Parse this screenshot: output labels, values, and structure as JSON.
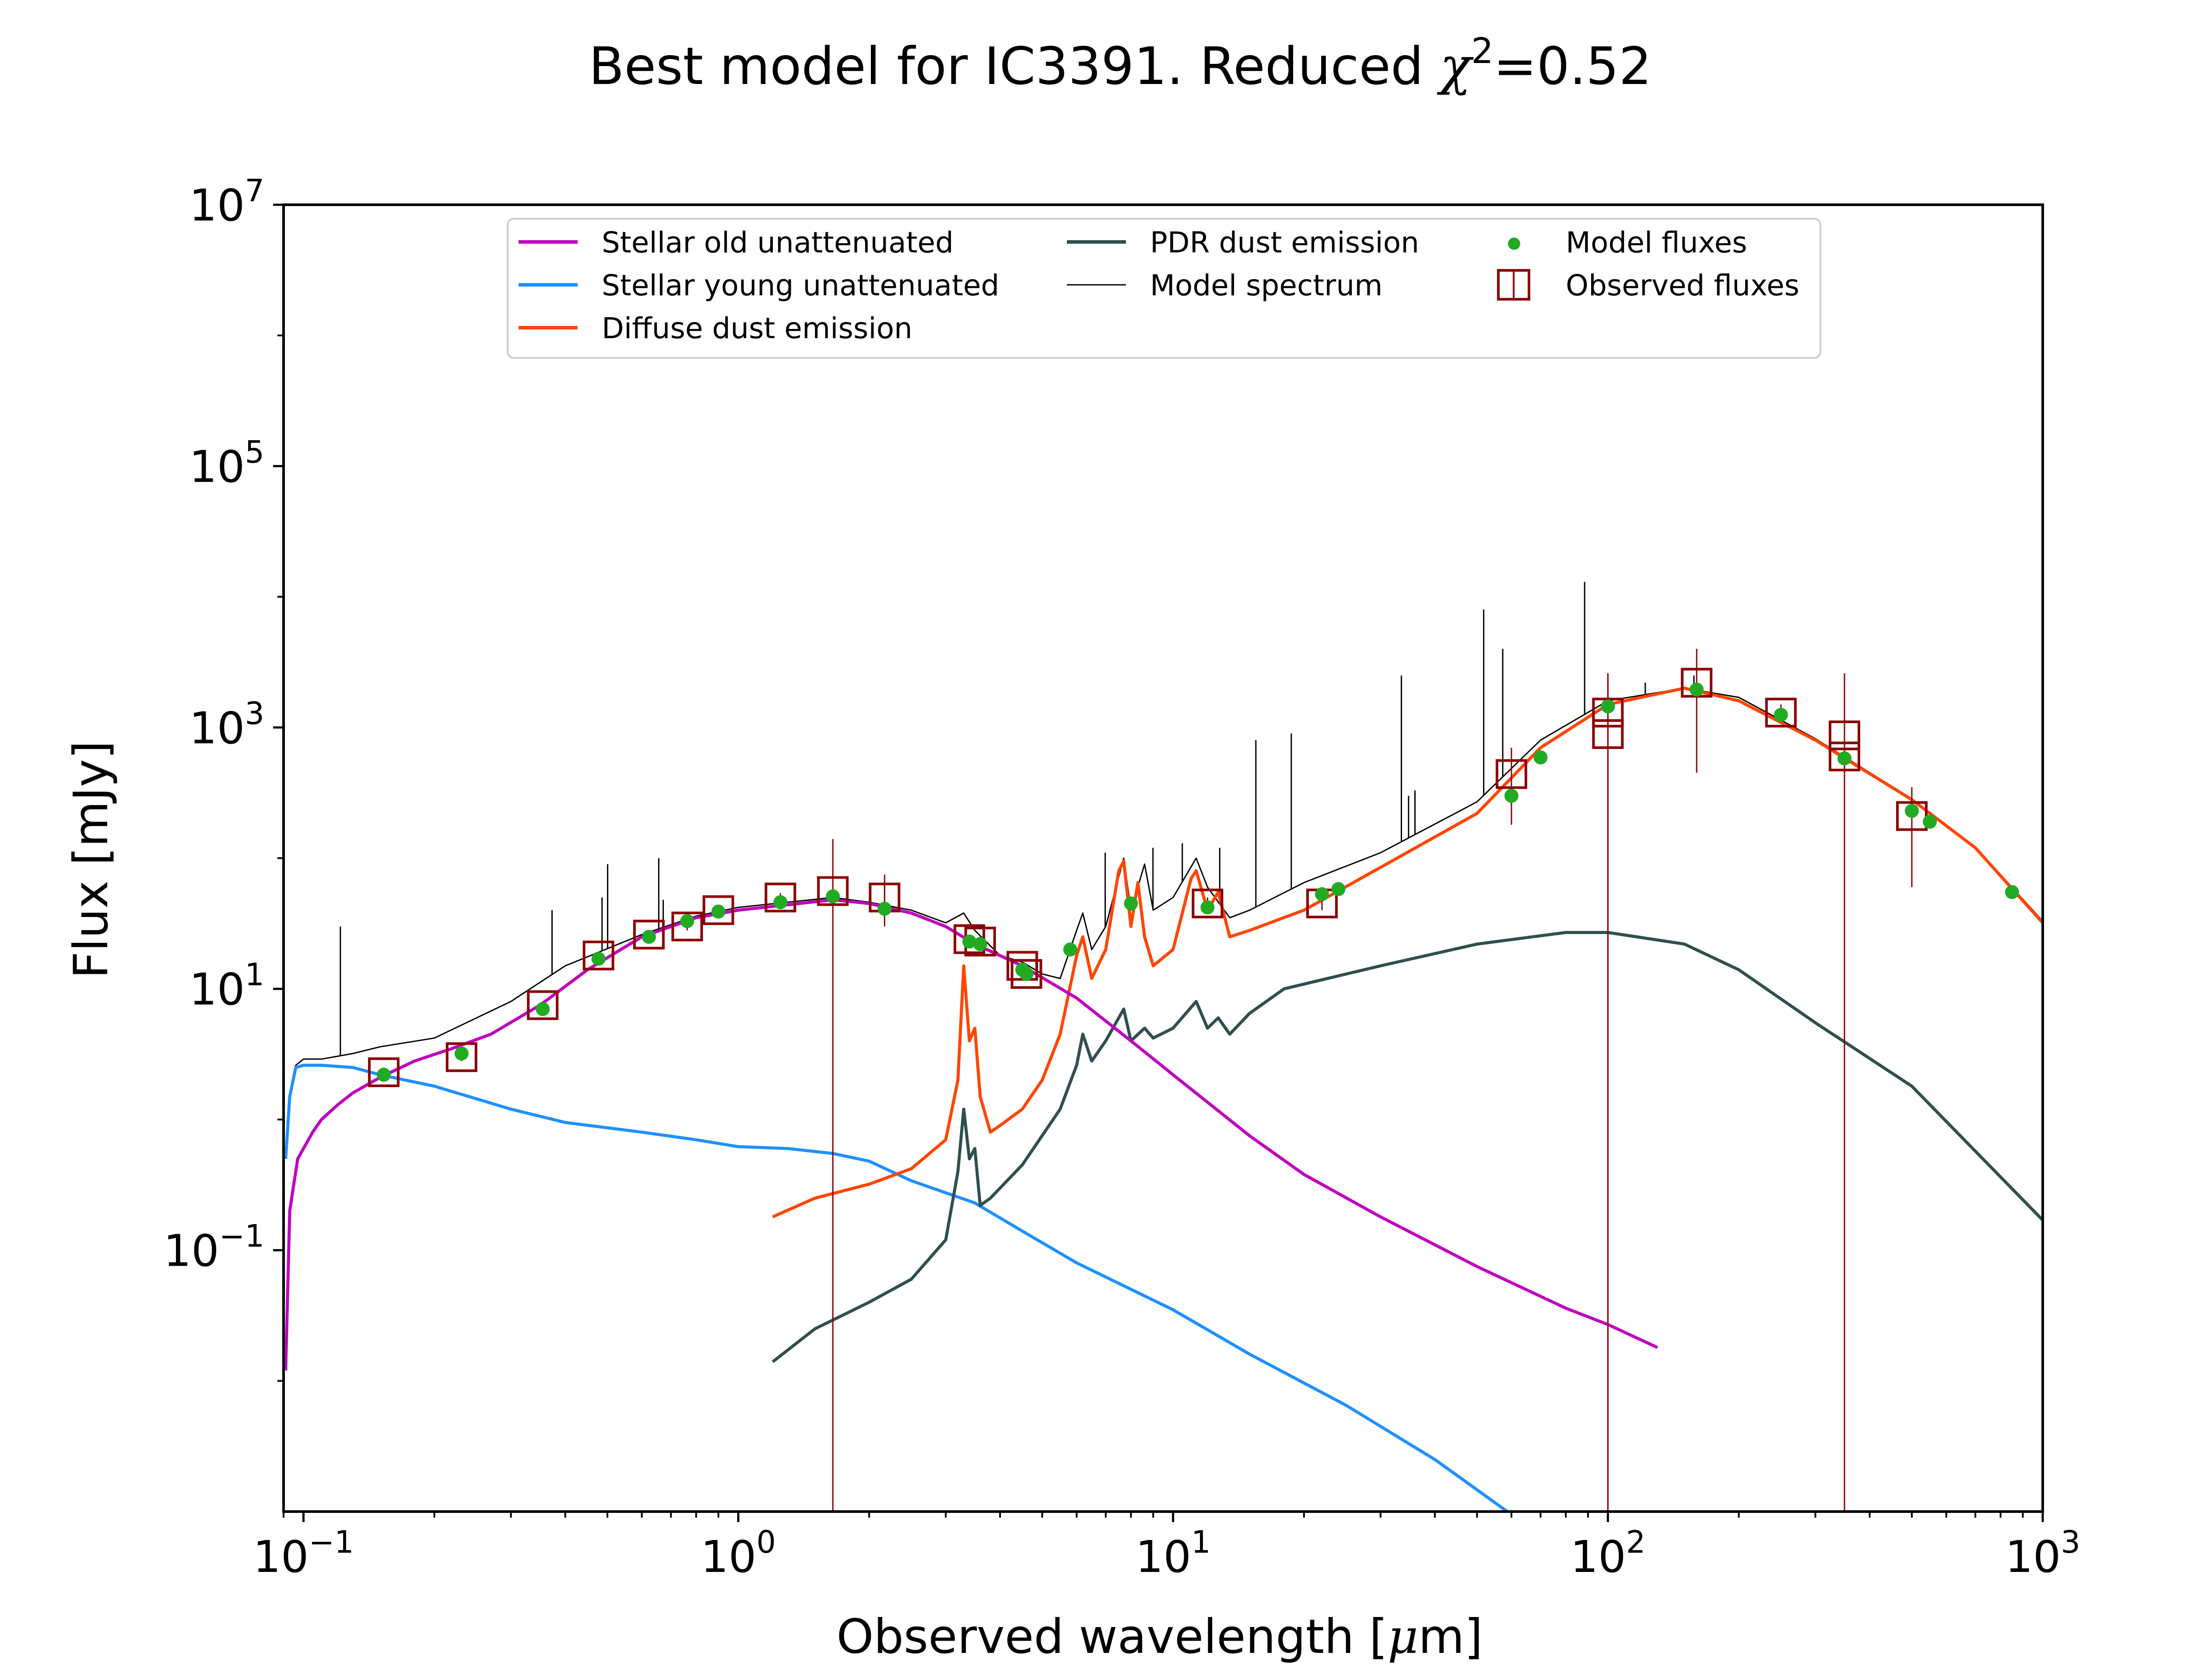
{
  "chart_data": {
    "type": "line",
    "title": "Best model for IC3391. Reduced χ²=0.52",
    "title_parts": {
      "main": "Best model for IC3391. Reduced ",
      "chi": "χ",
      "sup": "2",
      "tail": "=0.52"
    },
    "xlabel": "Observed wavelength [μm]",
    "xlabel_parts": {
      "main": "Observed wavelength [",
      "mu": "μ",
      "tail": "m]"
    },
    "ylabel": "Flux [mJy]",
    "x_scale": "log",
    "y_scale": "log",
    "xlim": [
      0.09,
      1000
    ],
    "ylim": [
      0.001,
      10000000
    ],
    "x_ticks": [
      {
        "value": 0.1,
        "base": "10",
        "exp": "−1"
      },
      {
        "value": 1,
        "base": "10",
        "exp": "0"
      },
      {
        "value": 10,
        "base": "10",
        "exp": "1"
      },
      {
        "value": 100,
        "base": "10",
        "exp": "2"
      },
      {
        "value": 1000,
        "base": "10",
        "exp": "3"
      }
    ],
    "y_ticks": [
      {
        "value": 0.1,
        "base": "10",
        "exp": "−1"
      },
      {
        "value": 10,
        "base": "10",
        "exp": "1"
      },
      {
        "value": 1000,
        "base": "10",
        "exp": "3"
      },
      {
        "value": 100000,
        "base": "10",
        "exp": "5"
      },
      {
        "value": 10000000,
        "base": "10",
        "exp": "7"
      }
    ],
    "grid": false,
    "legend_position": "top",
    "legend": {
      "stellar_old": "Stellar old unattenuated",
      "stellar_young": "Stellar young unattenuated",
      "diffuse_dust": "Diffuse dust emission",
      "pdr_dust": "PDR dust emission",
      "model_spectrum": "Model spectrum",
      "model_fluxes": "Model fluxes",
      "observed_fluxes": "Observed fluxes"
    },
    "colors": {
      "stellar_old": "#bf00bf",
      "stellar_young": "#1e90ff",
      "diffuse_dust": "#ff4500",
      "pdr_dust": "#2f4f4f",
      "model_spectrum": "#000000",
      "model_fluxes": "#22aa22",
      "observed_fluxes": "#8b0000"
    },
    "series": [
      {
        "name": "Stellar old unattenuated",
        "key": "stellar_old",
        "x": [
          0.091,
          0.093,
          0.097,
          0.1,
          0.105,
          0.11,
          0.12,
          0.13,
          0.15,
          0.18,
          0.22,
          0.27,
          0.35,
          0.45,
          0.6,
          0.8,
          1.0,
          1.3,
          1.65,
          2.0,
          2.5,
          3.0,
          3.5,
          4.5,
          6.0,
          8.0,
          10.0,
          15.0,
          20.0,
          30.0,
          50.0,
          80.0,
          100.0,
          130.0
        ],
        "y": [
          0.012,
          0.2,
          0.5,
          0.6,
          0.8,
          1.0,
          1.3,
          1.6,
          2.1,
          2.8,
          3.5,
          4.5,
          7.5,
          14,
          25,
          35,
          40,
          44,
          48,
          45,
          38,
          30,
          22,
          15,
          8.5,
          4.0,
          2.2,
          0.75,
          0.38,
          0.18,
          0.075,
          0.036,
          0.027,
          0.018
        ]
      },
      {
        "name": "Stellar young unattenuated",
        "key": "stellar_young",
        "x": [
          0.091,
          0.093,
          0.096,
          0.1,
          0.11,
          0.13,
          0.15,
          0.2,
          0.3,
          0.4,
          0.6,
          0.8,
          1.0,
          1.3,
          1.65,
          2.0,
          2.5,
          3.5,
          4.5,
          6.0,
          10.0,
          15.0,
          25.0,
          40.0,
          60.0
        ],
        "y": [
          0.5,
          1.5,
          2.5,
          2.6,
          2.6,
          2.5,
          2.2,
          1.8,
          1.2,
          0.95,
          0.8,
          0.7,
          0.62,
          0.6,
          0.55,
          0.48,
          0.34,
          0.23,
          0.14,
          0.08,
          0.035,
          0.016,
          0.0065,
          0.0025,
          0.00095
        ]
      },
      {
        "name": "Diffuse dust emission",
        "key": "diffuse_dust",
        "x": [
          1.2,
          1.5,
          2.0,
          2.5,
          3.0,
          3.2,
          3.3,
          3.4,
          3.5,
          3.6,
          3.8,
          4.0,
          4.5,
          5.0,
          5.5,
          6.0,
          6.2,
          6.5,
          7.0,
          7.5,
          7.7,
          8.0,
          8.3,
          8.6,
          9.0,
          10.0,
          11.0,
          11.3,
          12.0,
          12.7,
          13.5,
          15.0,
          20.0,
          30.0,
          50.0,
          70.0,
          100.0,
          150.0,
          200.0,
          300.0,
          500.0,
          700.0,
          1000.0
        ],
        "y": [
          0.18,
          0.25,
          0.32,
          0.42,
          0.7,
          2.0,
          15,
          4,
          5,
          1.5,
          0.8,
          0.9,
          1.2,
          2.0,
          4.5,
          18,
          25,
          12,
          20,
          80,
          95,
          30,
          65,
          25,
          15,
          20,
          70,
          80,
          40,
          55,
          25,
          28,
          40,
          85,
          220,
          700,
          1500,
          2000,
          1600,
          800,
          280,
          120,
          32
        ]
      },
      {
        "name": "PDR dust emission",
        "key": "pdr_dust",
        "x": [
          1.2,
          1.5,
          2.0,
          2.5,
          3.0,
          3.2,
          3.3,
          3.4,
          3.5,
          3.6,
          3.8,
          4.5,
          5.5,
          6.0,
          6.2,
          6.5,
          7.0,
          7.7,
          8.0,
          8.6,
          9.0,
          10.0,
          11.3,
          12.0,
          12.7,
          13.5,
          15.0,
          18.0,
          30.0,
          50.0,
          80.0,
          100.0,
          150.0,
          200.0,
          300.0,
          500.0,
          1000.0
        ],
        "y": [
          0.014,
          0.025,
          0.04,
          0.06,
          0.12,
          0.4,
          1.2,
          0.5,
          0.6,
          0.22,
          0.25,
          0.45,
          1.2,
          2.6,
          4.5,
          2.8,
          4.0,
          7.0,
          4.0,
          5.0,
          4.2,
          5.0,
          8.0,
          5.0,
          6.0,
          4.5,
          6.5,
          10,
          15,
          22,
          27,
          27,
          22,
          14,
          5.5,
          1.8,
          0.17
        ]
      },
      {
        "name": "Model spectrum",
        "key": "model_spectrum",
        "x": [
          0.091,
          0.093,
          0.096,
          0.1,
          0.11,
          0.13,
          0.15,
          0.2,
          0.3,
          0.4,
          0.6,
          0.8,
          1.0,
          1.3,
          1.65,
          2.0,
          2.5,
          3.0,
          3.3,
          3.5,
          4.0,
          4.5,
          5.0,
          5.5,
          6.0,
          6.2,
          6.5,
          7.0,
          7.7,
          8.0,
          8.6,
          9.0,
          10.0,
          11.3,
          12.0,
          13.5,
          15.0,
          20.0,
          30.0,
          50.0,
          70.0,
          100.0,
          150.0,
          200.0,
          300.0,
          500.0,
          700.0,
          1000.0
        ],
        "y": [
          0.5,
          1.6,
          2.6,
          2.9,
          2.9,
          3.2,
          3.6,
          4.2,
          8,
          15,
          26,
          36,
          42,
          46,
          50,
          46,
          40,
          32,
          38,
          28,
          18,
          16,
          13,
          12,
          28,
          38,
          20,
          30,
          100,
          40,
          90,
          40,
          50,
          100,
          60,
          35,
          40,
          65,
          110,
          270,
          800,
          1600,
          2000,
          1700,
          820,
          285,
          122,
          33
        ]
      }
    ],
    "emission_lines": [
      {
        "x": 0.1216,
        "top": 30
      },
      {
        "x": 0.373,
        "top": 40
      },
      {
        "x": 0.4861,
        "top": 50
      },
      {
        "x": 0.5007,
        "top": 90
      },
      {
        "x": 0.6563,
        "top": 100
      },
      {
        "x": 0.672,
        "top": 48
      },
      {
        "x": 2.17,
        "top": 65
      },
      {
        "x": 6.98,
        "top": 110
      },
      {
        "x": 8.99,
        "top": 120
      },
      {
        "x": 10.5,
        "top": 130
      },
      {
        "x": 12.8,
        "top": 120
      },
      {
        "x": 15.5,
        "top": 800
      },
      {
        "x": 18.7,
        "top": 900
      },
      {
        "x": 33.5,
        "top": 2500
      },
      {
        "x": 34.8,
        "top": 300
      },
      {
        "x": 36.0,
        "top": 330
      },
      {
        "x": 51.8,
        "top": 8000
      },
      {
        "x": 57.3,
        "top": 4000
      },
      {
        "x": 88.4,
        "top": 13000
      },
      {
        "x": 121.9,
        "top": 2200
      },
      {
        "x": 157.7,
        "top": 2500
      }
    ],
    "model_fluxes": {
      "x": [
        0.153,
        0.231,
        0.355,
        0.477,
        0.623,
        0.763,
        0.9,
        1.25,
        1.65,
        2.17,
        3.4,
        3.6,
        4.5,
        4.6,
        5.8,
        8.0,
        12.0,
        22.0,
        24.0,
        60.0,
        70.0,
        100.0,
        160.0,
        250.0,
        350.0,
        500.0,
        550.0,
        850.0
      ],
      "y": [
        2.2,
        3.2,
        7.0,
        17,
        25,
        33,
        39,
        46,
        51,
        41,
        23,
        22,
        14,
        13,
        20,
        45,
        42,
        53,
        58,
        300,
        590,
        1450,
        1950,
        1250,
        580,
        230,
        190,
        55
      ]
    },
    "observed_fluxes": {
      "x": [
        0.153,
        0.231,
        0.355,
        0.477,
        0.623,
        0.763,
        0.9,
        1.25,
        1.65,
        2.17,
        3.4,
        3.6,
        4.5,
        4.6,
        12.0,
        22.0,
        60.0,
        100.0,
        100.0,
        160.0,
        250.0,
        350.0,
        350.0,
        500.0
      ],
      "y": [
        2.3,
        3.0,
        7.5,
        18,
        26,
        30,
        40,
        50,
        56,
        50,
        24,
        23,
        15,
        13,
        45,
        45,
        440,
        1300,
        890,
        2200,
        1300,
        870,
        600,
        210
      ],
      "err_low": [
        2.1,
        2.8,
        7.0,
        17,
        24,
        28,
        37,
        46,
        0.001,
        30,
        22,
        21,
        14,
        12,
        40,
        40,
        180,
        0.001,
        0.001,
        450,
        1100,
        0.001,
        0.001,
        60
      ],
      "err_high": [
        2.5,
        3.2,
        8.0,
        19,
        28,
        32,
        43,
        54,
        140,
        75,
        26,
        25,
        16,
        14,
        50,
        50,
        700,
        2600,
        2600,
        4000,
        1500,
        2600,
        2600,
        350
      ]
    }
  }
}
